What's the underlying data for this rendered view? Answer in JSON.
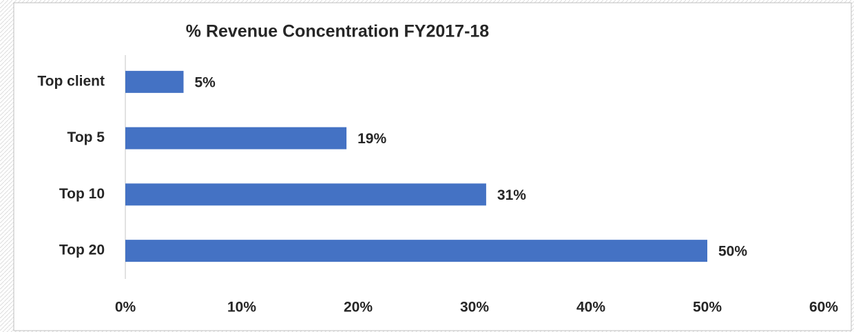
{
  "chart_data": {
    "type": "hbar",
    "title": "% Revenue Concentration FY2017-18",
    "categories": [
      "Top client",
      "Top 5",
      "Top 10",
      "Top 20"
    ],
    "values": [
      5,
      19,
      31,
      50
    ],
    "value_labels": [
      "5%",
      "19%",
      "31%",
      "50%"
    ],
    "color": "#4472c4",
    "xlim": [
      0,
      60
    ],
    "xticks": [
      {
        "value": 0,
        "label": "0%"
      },
      {
        "value": 10,
        "label": "10%"
      },
      {
        "value": 20,
        "label": "20%"
      },
      {
        "value": 30,
        "label": "30%"
      },
      {
        "value": 40,
        "label": "40%"
      },
      {
        "value": 50,
        "label": "50%"
      },
      {
        "value": 60,
        "label": "60%"
      }
    ],
    "grid": false
  }
}
